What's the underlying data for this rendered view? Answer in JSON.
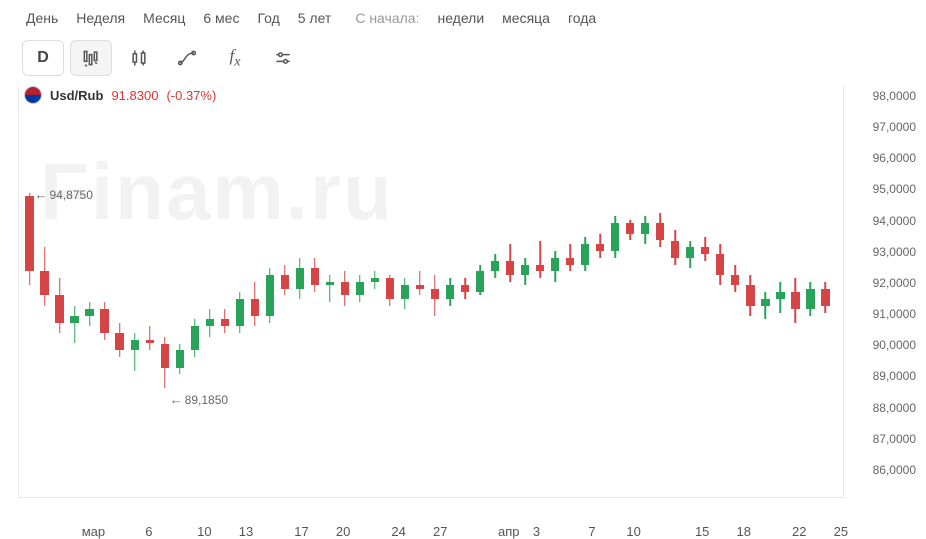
{
  "timeframes": {
    "items": [
      "День",
      "Неделя",
      "Месяц",
      "6 мес",
      "Год",
      "5 лет"
    ],
    "prefix": "С начала:",
    "relative": [
      "недели",
      "месяца",
      "года"
    ]
  },
  "toolbar": {
    "interval_label": "D"
  },
  "legend": {
    "pair": "Usd/Rub",
    "price": "91.8300",
    "change": "(-0.37%)",
    "flag_top": "#b22234",
    "flag_bot": "#0039a6",
    "price_color": "#cc3333"
  },
  "watermark": "Finam.ru",
  "markers": {
    "high_label": "94,8750",
    "low_label": "89,1850"
  },
  "chart": {
    "type": "candlestick",
    "y_min": 86,
    "y_max": 98,
    "y_ticks": [
      "98,0000",
      "97,0000",
      "96,0000",
      "95,0000",
      "94,0000",
      "93,0000",
      "92,0000",
      "91,0000",
      "90,0000",
      "89,0000",
      "88,0000",
      "87,0000",
      "86,0000"
    ],
    "x_ticks": [
      {
        "pos": 9.0,
        "label": "мар"
      },
      {
        "pos": 15.8,
        "label": "6"
      },
      {
        "pos": 22.6,
        "label": "10"
      },
      {
        "pos": 27.7,
        "label": "13"
      },
      {
        "pos": 34.5,
        "label": "17"
      },
      {
        "pos": 39.6,
        "label": "20"
      },
      {
        "pos": 46.4,
        "label": "24"
      },
      {
        "pos": 51.5,
        "label": "27"
      },
      {
        "pos": 59.9,
        "label": "апр"
      },
      {
        "pos": 63.3,
        "label": "3"
      },
      {
        "pos": 70.1,
        "label": "7"
      },
      {
        "pos": 75.2,
        "label": "10"
      },
      {
        "pos": 83.6,
        "label": "15"
      },
      {
        "pos": 88.7,
        "label": "18"
      },
      {
        "pos": 95.5,
        "label": "22"
      },
      {
        "pos": 100.6,
        "label": "25"
      }
    ],
    "colors": {
      "up": "#2aa35a",
      "down": "#d64545"
    },
    "background": "#ffffff",
    "grid_color": "#e8e8e8",
    "candles": [
      {
        "o": 94.8,
        "h": 94.88,
        "l": 92.2,
        "c": 92.6,
        "dir": "down"
      },
      {
        "o": 92.6,
        "h": 93.3,
        "l": 91.6,
        "c": 91.9,
        "dir": "down"
      },
      {
        "o": 91.9,
        "h": 92.4,
        "l": 90.8,
        "c": 91.1,
        "dir": "down"
      },
      {
        "o": 91.1,
        "h": 91.6,
        "l": 90.5,
        "c": 91.3,
        "dir": "up"
      },
      {
        "o": 91.3,
        "h": 91.7,
        "l": 91.0,
        "c": 91.5,
        "dir": "up"
      },
      {
        "o": 91.5,
        "h": 91.7,
        "l": 90.6,
        "c": 90.8,
        "dir": "down"
      },
      {
        "o": 90.8,
        "h": 91.1,
        "l": 90.1,
        "c": 90.3,
        "dir": "down"
      },
      {
        "o": 90.3,
        "h": 90.8,
        "l": 89.7,
        "c": 90.6,
        "dir": "up"
      },
      {
        "o": 90.6,
        "h": 91.0,
        "l": 90.3,
        "c": 90.5,
        "dir": "down"
      },
      {
        "o": 90.5,
        "h": 90.7,
        "l": 89.19,
        "c": 89.8,
        "dir": "down"
      },
      {
        "o": 89.8,
        "h": 90.5,
        "l": 89.6,
        "c": 90.3,
        "dir": "up"
      },
      {
        "o": 90.3,
        "h": 91.2,
        "l": 90.1,
        "c": 91.0,
        "dir": "up"
      },
      {
        "o": 91.0,
        "h": 91.5,
        "l": 90.7,
        "c": 91.2,
        "dir": "up"
      },
      {
        "o": 91.2,
        "h": 91.5,
        "l": 90.8,
        "c": 91.0,
        "dir": "down"
      },
      {
        "o": 91.0,
        "h": 92.0,
        "l": 90.8,
        "c": 91.8,
        "dir": "up"
      },
      {
        "o": 91.8,
        "h": 92.3,
        "l": 91.0,
        "c": 91.3,
        "dir": "down"
      },
      {
        "o": 91.3,
        "h": 92.7,
        "l": 91.1,
        "c": 92.5,
        "dir": "up"
      },
      {
        "o": 92.5,
        "h": 92.8,
        "l": 91.9,
        "c": 92.1,
        "dir": "down"
      },
      {
        "o": 92.1,
        "h": 93.0,
        "l": 91.8,
        "c": 92.7,
        "dir": "up"
      },
      {
        "o": 92.7,
        "h": 93.0,
        "l": 92.0,
        "c": 92.2,
        "dir": "down"
      },
      {
        "o": 92.2,
        "h": 92.5,
        "l": 91.7,
        "c": 92.3,
        "dir": "up"
      },
      {
        "o": 92.3,
        "h": 92.6,
        "l": 91.6,
        "c": 91.9,
        "dir": "down"
      },
      {
        "o": 91.9,
        "h": 92.5,
        "l": 91.7,
        "c": 92.3,
        "dir": "up"
      },
      {
        "o": 92.3,
        "h": 92.6,
        "l": 92.1,
        "c": 92.4,
        "dir": "up"
      },
      {
        "o": 92.4,
        "h": 92.5,
        "l": 91.6,
        "c": 91.8,
        "dir": "down"
      },
      {
        "o": 91.8,
        "h": 92.4,
        "l": 91.5,
        "c": 92.2,
        "dir": "up"
      },
      {
        "o": 92.2,
        "h": 92.6,
        "l": 91.9,
        "c": 92.1,
        "dir": "down"
      },
      {
        "o": 92.1,
        "h": 92.5,
        "l": 91.3,
        "c": 91.8,
        "dir": "down"
      },
      {
        "o": 91.8,
        "h": 92.4,
        "l": 91.6,
        "c": 92.2,
        "dir": "up"
      },
      {
        "o": 92.2,
        "h": 92.4,
        "l": 91.8,
        "c": 92.0,
        "dir": "down"
      },
      {
        "o": 92.0,
        "h": 92.8,
        "l": 91.9,
        "c": 92.6,
        "dir": "up"
      },
      {
        "o": 92.6,
        "h": 93.1,
        "l": 92.4,
        "c": 92.9,
        "dir": "up"
      },
      {
        "o": 92.9,
        "h": 93.4,
        "l": 92.3,
        "c": 92.5,
        "dir": "down"
      },
      {
        "o": 92.5,
        "h": 93.0,
        "l": 92.2,
        "c": 92.8,
        "dir": "up"
      },
      {
        "o": 92.8,
        "h": 93.5,
        "l": 92.4,
        "c": 92.6,
        "dir": "down"
      },
      {
        "o": 92.6,
        "h": 93.2,
        "l": 92.3,
        "c": 93.0,
        "dir": "up"
      },
      {
        "o": 93.0,
        "h": 93.4,
        "l": 92.6,
        "c": 92.8,
        "dir": "down"
      },
      {
        "o": 92.8,
        "h": 93.6,
        "l": 92.6,
        "c": 93.4,
        "dir": "up"
      },
      {
        "o": 93.4,
        "h": 93.7,
        "l": 93.0,
        "c": 93.2,
        "dir": "down"
      },
      {
        "o": 93.2,
        "h": 94.2,
        "l": 93.0,
        "c": 94.0,
        "dir": "up"
      },
      {
        "o": 94.0,
        "h": 94.1,
        "l": 93.5,
        "c": 93.7,
        "dir": "down"
      },
      {
        "o": 93.7,
        "h": 94.2,
        "l": 93.4,
        "c": 94.0,
        "dir": "up"
      },
      {
        "o": 94.0,
        "h": 94.3,
        "l": 93.3,
        "c": 93.5,
        "dir": "down"
      },
      {
        "o": 93.5,
        "h": 93.8,
        "l": 92.8,
        "c": 93.0,
        "dir": "down"
      },
      {
        "o": 93.0,
        "h": 93.5,
        "l": 92.7,
        "c": 93.3,
        "dir": "up"
      },
      {
        "o": 93.3,
        "h": 93.6,
        "l": 92.9,
        "c": 93.1,
        "dir": "down"
      },
      {
        "o": 93.1,
        "h": 93.4,
        "l": 92.2,
        "c": 92.5,
        "dir": "down"
      },
      {
        "o": 92.5,
        "h": 92.8,
        "l": 92.0,
        "c": 92.2,
        "dir": "down"
      },
      {
        "o": 92.2,
        "h": 92.5,
        "l": 91.3,
        "c": 91.6,
        "dir": "down"
      },
      {
        "o": 91.6,
        "h": 92.0,
        "l": 91.2,
        "c": 91.8,
        "dir": "up"
      },
      {
        "o": 91.8,
        "h": 92.3,
        "l": 91.4,
        "c": 92.0,
        "dir": "up"
      },
      {
        "o": 92.0,
        "h": 92.4,
        "l": 91.1,
        "c": 91.5,
        "dir": "down"
      },
      {
        "o": 91.5,
        "h": 92.3,
        "l": 91.3,
        "c": 92.1,
        "dir": "up"
      },
      {
        "o": 92.1,
        "h": 92.3,
        "l": 91.4,
        "c": 91.6,
        "dir": "down"
      }
    ]
  }
}
